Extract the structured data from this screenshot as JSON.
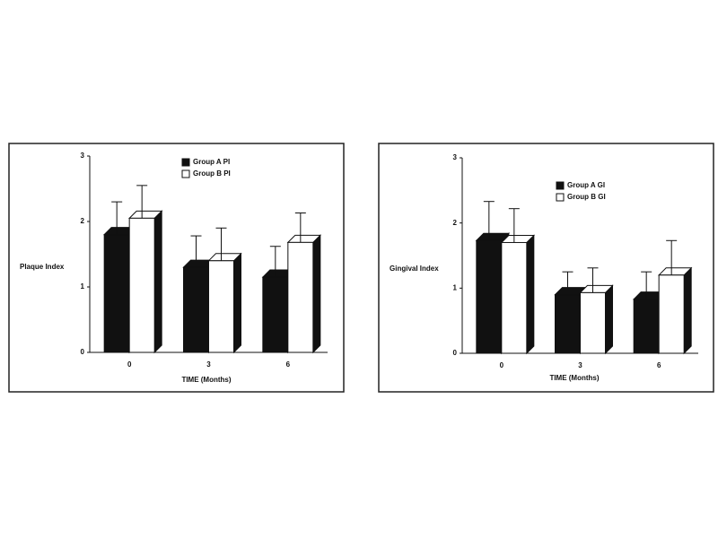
{
  "chart_data": [
    {
      "type": "bar",
      "y_label": "Plaque Index",
      "x_label": "TIME (Months)",
      "categories": [
        "0",
        "3",
        "6"
      ],
      "series": [
        {
          "name": "Group A PI",
          "color": "#111111",
          "values": [
            1.8,
            1.3,
            1.15
          ],
          "errors": [
            0.5,
            0.48,
            0.47
          ]
        },
        {
          "name": "Group B PI",
          "color": "#ffffff",
          "values": [
            2.05,
            1.4,
            1.68
          ],
          "errors": [
            0.5,
            0.5,
            0.45
          ]
        }
      ],
      "ylim": [
        0,
        3
      ],
      "yticks": [
        0,
        1,
        2,
        3
      ]
    },
    {
      "type": "bar",
      "y_label": "Gingival Index",
      "x_label": "TIME (Months)",
      "categories": [
        "0",
        "3",
        "6"
      ],
      "series": [
        {
          "name": "Group A GI",
          "color": "#111111",
          "values": [
            1.73,
            0.9,
            0.83
          ],
          "errors": [
            0.6,
            0.35,
            0.42
          ]
        },
        {
          "name": "Group B GI",
          "color": "#ffffff",
          "values": [
            1.7,
            0.93,
            1.2
          ],
          "errors": [
            0.52,
            0.38,
            0.53
          ]
        }
      ],
      "ylim": [
        0,
        3
      ],
      "yticks": [
        0,
        1,
        2,
        3
      ]
    }
  ]
}
